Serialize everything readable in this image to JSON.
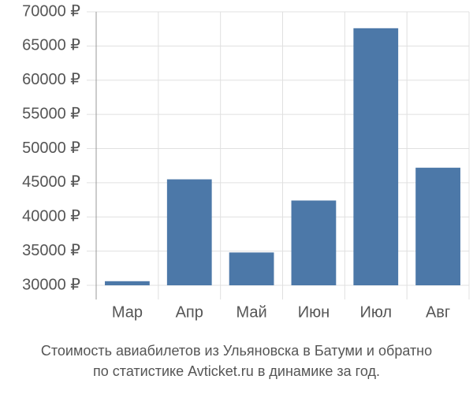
{
  "chart_data": {
    "type": "bar",
    "title": [
      "Стоимость авиабилетов из Ульяновска в Батуми и обратно",
      "по статистике Avticket.ru в динамике за год."
    ],
    "categories": [
      "Мар",
      "Апр",
      "Май",
      "Июн",
      "Июл",
      "Авг"
    ],
    "values": [
      30600,
      45500,
      34800,
      42400,
      67600,
      47200
    ],
    "color": "#4c78a8",
    "ylim": [
      30000,
      70000
    ],
    "yticks": [
      {
        "value": 30000,
        "label": "30000 ₽"
      },
      {
        "value": 35000,
        "label": "35000 ₽"
      },
      {
        "value": 40000,
        "label": "40000 ₽"
      },
      {
        "value": 45000,
        "label": "45000 ₽"
      },
      {
        "value": 50000,
        "label": "50000 ₽"
      },
      {
        "value": 55000,
        "label": "55000 ₽"
      },
      {
        "value": 60000,
        "label": "60000 ₽"
      },
      {
        "value": 65000,
        "label": "65000 ₽"
      },
      {
        "value": 70000,
        "label": "70000 ₽"
      }
    ],
    "grid": true
  }
}
